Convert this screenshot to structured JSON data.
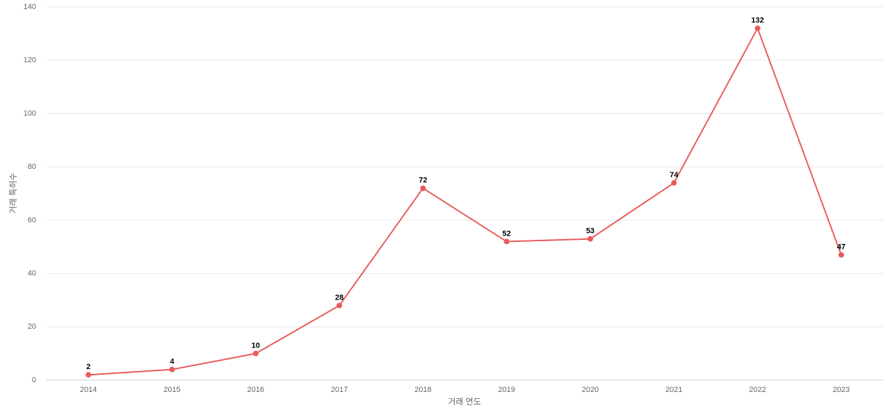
{
  "chart_data": {
    "type": "line",
    "x_label": "거래 연도",
    "y_label": "거래 특허수",
    "categories": [
      "2014",
      "2015",
      "2016",
      "2017",
      "2018",
      "2019",
      "2020",
      "2021",
      "2022",
      "2023"
    ],
    "values": [
      2,
      4,
      10,
      28,
      72,
      52,
      53,
      74,
      132,
      47
    ],
    "color": "#e85b5b",
    "ylim": [
      0,
      140
    ],
    "yticks": [
      0,
      20,
      40,
      60,
      80,
      100,
      120,
      140
    ],
    "grid": true
  }
}
